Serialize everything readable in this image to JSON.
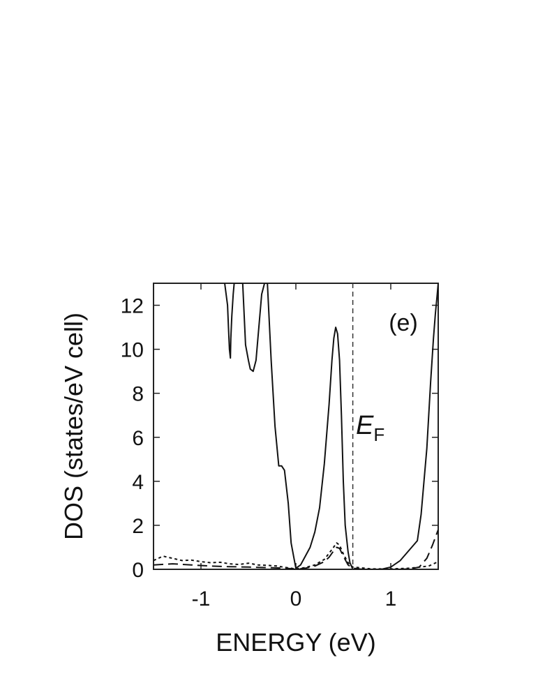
{
  "chart_data": {
    "type": "line",
    "xlabel": "ENERGY (eV)",
    "ylabel": "DOS (states/eV cell)",
    "panel_label": "(e)",
    "xlim": [
      -1.5,
      1.5
    ],
    "ylim": [
      0,
      13
    ],
    "x_ticks": [
      -1,
      0,
      1
    ],
    "y_ticks": [
      0,
      2,
      4,
      6,
      8,
      10,
      12
    ],
    "grid": false,
    "annotations": [
      {
        "text": "E",
        "subscript": "F",
        "x": 0.6
      }
    ],
    "fermi_level": 0.6,
    "series": [
      {
        "style": "solid",
        "x": [
          -0.75,
          -0.72,
          -0.71,
          -0.7,
          -0.69,
          -0.685,
          -0.68,
          -0.675,
          -0.66,
          -0.65,
          -0.6,
          -0.56,
          -0.53,
          -0.5,
          -0.48,
          -0.45,
          -0.42,
          -0.36,
          -0.33,
          -0.3,
          -0.26,
          -0.22,
          -0.18,
          -0.15,
          -0.12,
          -0.08,
          -0.05,
          -0.02,
          0.0,
          0.05,
          0.1,
          0.15,
          0.2,
          0.25,
          0.3,
          0.35,
          0.38,
          0.4,
          0.42,
          0.44,
          0.46,
          0.48,
          0.5,
          0.52,
          0.55,
          0.57,
          0.595,
          0.6,
          0.605,
          0.7,
          0.8,
          0.9,
          1.0,
          1.1,
          1.2,
          1.28,
          1.32,
          1.38,
          1.42,
          1.45,
          1.47,
          1.49,
          1.5
        ],
        "y": [
          13,
          12,
          11,
          10,
          9.6,
          10.5,
          11,
          11.5,
          12.5,
          13,
          13,
          13,
          10.2,
          9.5,
          9.1,
          9.0,
          9.5,
          12.5,
          13,
          13,
          9.5,
          6.5,
          4.7,
          4.7,
          4.5,
          3.0,
          1.2,
          0.5,
          0.05,
          0.2,
          0.6,
          1.0,
          1.7,
          2.8,
          4.8,
          7.5,
          9.5,
          10.5,
          11.0,
          10.7,
          9.5,
          7.0,
          4.0,
          2.0,
          0.8,
          0.3,
          0.05,
          0,
          0,
          0,
          0,
          0,
          0.1,
          0.4,
          0.9,
          1.3,
          2.5,
          5.5,
          8.5,
          10.5,
          11.6,
          12.5,
          13
        ]
      },
      {
        "style": "long-dash",
        "x": [
          -1.5,
          -1.3,
          -1.1,
          -0.9,
          -0.7,
          -0.5,
          -0.3,
          -0.1,
          0.0,
          0.1,
          0.2,
          0.3,
          0.35,
          0.4,
          0.43,
          0.46,
          0.5,
          0.55,
          0.6,
          0.7,
          0.8,
          0.9,
          1.0,
          1.1,
          1.2,
          1.3,
          1.38,
          1.44,
          1.5
        ],
        "y": [
          0.2,
          0.25,
          0.2,
          0.15,
          0.12,
          0.1,
          0.08,
          0.05,
          0.0,
          0.05,
          0.15,
          0.35,
          0.55,
          0.85,
          1.0,
          0.95,
          0.6,
          0.2,
          0.05,
          0,
          0,
          0,
          0,
          0,
          0.02,
          0.1,
          0.5,
          1.1,
          1.8
        ]
      },
      {
        "style": "short-dash",
        "x": [
          -1.5,
          -1.4,
          -1.3,
          -1.2,
          -1.1,
          -1.0,
          -0.9,
          -0.8,
          -0.7,
          -0.6,
          -0.5,
          -0.4,
          -0.3,
          -0.2,
          -0.1,
          0.0,
          0.1,
          0.2,
          0.3,
          0.38,
          0.43,
          0.46,
          0.5,
          0.55,
          0.6,
          0.8,
          1.0,
          1.2,
          1.4,
          1.5
        ],
        "y": [
          0.4,
          0.6,
          0.5,
          0.4,
          0.42,
          0.35,
          0.3,
          0.32,
          0.25,
          0.22,
          0.28,
          0.2,
          0.18,
          0.15,
          0.08,
          0.02,
          0.08,
          0.2,
          0.45,
          0.9,
          1.2,
          1.1,
          0.7,
          0.3,
          0.1,
          0.02,
          0.02,
          0.05,
          0.15,
          0.35
        ]
      }
    ]
  }
}
